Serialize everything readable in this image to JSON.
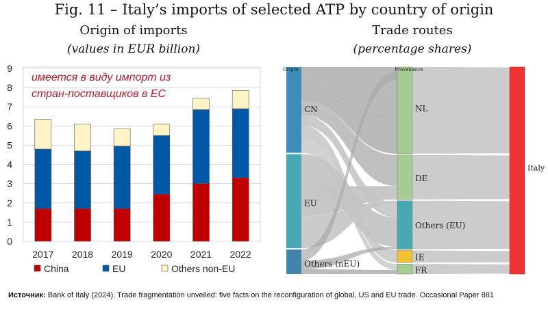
{
  "figure_title": "Fig. 11 – Italy’s imports of selected ATP by country of origin",
  "left_panel": {
    "title": "Origin of imports",
    "subtitle": "(values in EUR billion)"
  },
  "right_panel": {
    "title": "Trade routes",
    "subtitle": "(percentage shares)"
  },
  "source": {
    "label": "Источник:",
    "text": "Bank of Italy (2024). Trade fragmentation unveiled: five facts on the reconfiguration of global, US and EU trade. Occasional Paper 881"
  },
  "chart_data": [
    {
      "type": "bar",
      "stacked": true,
      "categories": [
        "2017",
        "2018",
        "2019",
        "2020",
        "2021",
        "2022"
      ],
      "series": [
        {
          "name": "China",
          "color": "#c00000",
          "values": [
            1.7,
            1.7,
            1.7,
            2.45,
            3.0,
            3.3
          ]
        },
        {
          "name": "EU",
          "color": "#0058a6",
          "values": [
            3.1,
            3.0,
            3.25,
            3.05,
            3.85,
            3.6
          ]
        },
        {
          "name": "Others non-EU",
          "color": "#fff4c6",
          "values": [
            1.55,
            1.4,
            0.9,
            0.6,
            0.6,
            0.95
          ]
        }
      ],
      "ylim": [
        0,
        9
      ],
      "yticks": [
        "0",
        "1",
        "2",
        "3",
        "4",
        "5",
        "6",
        "7",
        "8",
        "9"
      ],
      "grid": true,
      "legend_position": "bottom",
      "annotation": "имеется в виду импорт из\nстран-поставщиков в ЕС",
      "annotation_color": "#b01e2e"
    },
    {
      "type": "sankey",
      "stage_labels": [
        "Origin",
        "Provenance"
      ],
      "sources": [
        {
          "name": "CN",
          "share": 42,
          "color": "#3e8db8"
        },
        {
          "name": "EU",
          "share": 46,
          "color": "#48a9b5"
        },
        {
          "name": "Others (nEU)",
          "share": 12,
          "color": "#3f85ae"
        }
      ],
      "provenance": [
        {
          "name": "NL",
          "share": 43,
          "color": "#a6cc95"
        },
        {
          "name": "DE",
          "share": 22,
          "color": "#a6cc95"
        },
        {
          "name": "Others (EU)",
          "share": 24,
          "color": "#48a9b5"
        },
        {
          "name": "IE",
          "share": 6,
          "color": "#f1c232"
        },
        {
          "name": "FR",
          "share": 5,
          "color": "#a6cc95"
        }
      ],
      "target": {
        "name": "Italy",
        "color": "#ee3333"
      }
    }
  ]
}
